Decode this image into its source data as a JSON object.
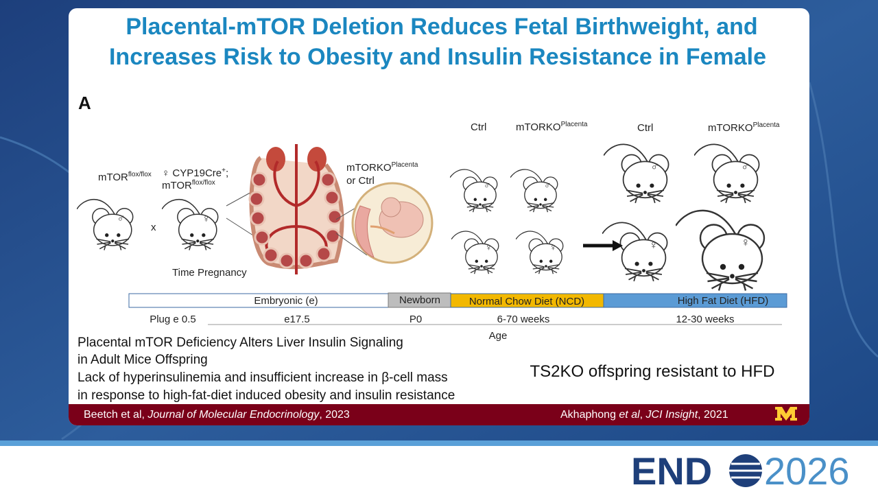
{
  "title": {
    "lines": [
      "Placental-mTOR Deletion Reduces Fetal Birthweight, and",
      "Increases Risk to Obesity and Insulin Resistance in Female"
    ]
  },
  "panel_label": "A",
  "figure": {
    "parent_male": {
      "base": "mTOR",
      "sup": "flox/flox"
    },
    "parent_female": {
      "line1": "♀ CYP19Cre",
      "line1_sup": "+",
      "line1_end": ";",
      "line2": "mTOR",
      "line2_sup": "flox/flox"
    },
    "cross": "x",
    "time_pregnancy": "Time Pregnancy",
    "embryo_label": {
      "base": "mTORKO",
      "sup": "Placenta",
      "line2": "or Ctrl"
    },
    "groups": [
      {
        "base": "Ctrl"
      },
      {
        "base": "mTORKO",
        "sup": "Placenta"
      },
      {
        "base": "Ctrl"
      },
      {
        "base": "mTORKO",
        "sup": "Placenta"
      }
    ],
    "mice": [
      "♂",
      "♀",
      "♂",
      "♂",
      "♀",
      "♀",
      "♂",
      "♂",
      "♀",
      "♀"
    ]
  },
  "timeline": {
    "segments": [
      "Embryonic (e)",
      "Newborn",
      "Normal Chow Diet (NCD)",
      "High Fat Diet (HFD)"
    ],
    "ticks": [
      "Plug e 0.5",
      "e17.5",
      "P0",
      "6-70 weeks",
      "12-30 weeks"
    ],
    "axis_label": "Age"
  },
  "findings": {
    "lines": [
      "Placental mTOR Deficiency Alters Liver Insulin Signaling",
      "in Adult Mice Offspring",
      "Lack of hyperinsulinemia and insufficient increase in β-cell mass",
      "in response to high-fat-diet induced obesity and insulin resistance"
    ]
  },
  "result": "TS2KO offspring resistant to HFD",
  "footer": {
    "left": {
      "authors": "Beetch et al, ",
      "journal": "Journal of Molecular Endocrinology",
      "year": ", 2023"
    },
    "right": {
      "author": "Akhaphong ",
      "etal": "et al",
      "sep": ", ",
      "journal": "JCI Insight",
      "year": ", 2021"
    }
  },
  "branding": {
    "left": "END",
    "right": "2026"
  }
}
